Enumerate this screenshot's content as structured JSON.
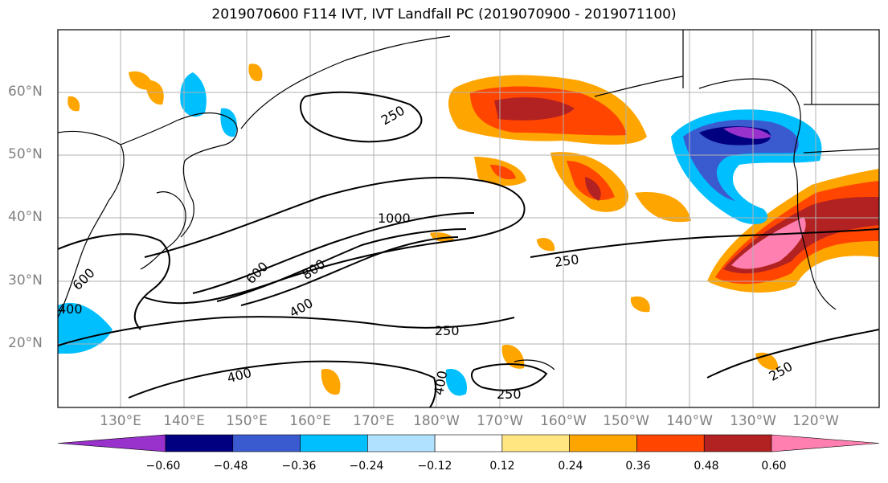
{
  "title": "2019070600 F114 IVT, IVT Landfall PC (2019070900 - 2019071100)",
  "lat_labels": [
    "60°N",
    "50°N",
    "40°N",
    "30°N",
    "20°N"
  ],
  "lon_labels": [
    "130°E",
    "140°E",
    "150°E",
    "160°E",
    "170°E",
    "180°W",
    "170°W",
    "160°W",
    "150°W",
    "140°W",
    "130°W",
    "120°W"
  ],
  "ivt_contour_labels": [
    "250",
    "1000",
    "600",
    "800",
    "400",
    "250",
    "600",
    "400",
    "250",
    "400",
    "250",
    "250",
    "400"
  ],
  "colorbar": {
    "colors": [
      "#9932cc",
      "#000080",
      "#3a5bd0",
      "#00bfff",
      "#b0e2ff",
      "#ffffff",
      "#ffe680",
      "#ffa500",
      "#ff4500",
      "#b22222",
      "#ff80b0"
    ],
    "tick_labels": [
      "−0.60",
      "−0.48",
      "−0.36",
      "−0.24",
      "−0.12",
      "0.12",
      "0.24",
      "0.36",
      "0.48",
      "0.60"
    ]
  }
}
